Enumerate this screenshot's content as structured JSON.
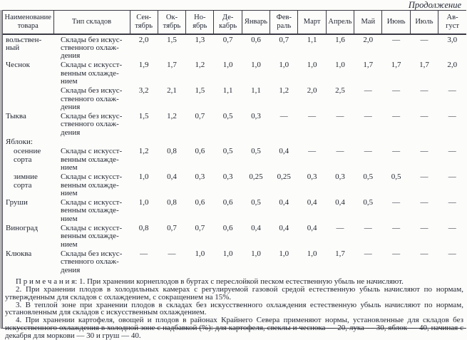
{
  "page": {
    "continuation_label": "Продолжение"
  },
  "table": {
    "columns": [
      "Наименование\nтовара",
      "Тип складов",
      "Сен-\nтябрь",
      "Ок-\nтябрь",
      "Но-\nябрь",
      "Де-\nкабрь",
      "Январь",
      "Фев-\nраль",
      "Март",
      "Апрель",
      "Май",
      "Июнь",
      "Июль",
      "Ав-\nгуст"
    ],
    "rows": [
      {
        "name": "вольствен-\nный",
        "indent": false,
        "type": "Склады без искус-\nственного охлаж-\nдения",
        "values": [
          "2,0",
          "1,5",
          "1,3",
          "0,7",
          "0,6",
          "0,7",
          "1,1",
          "1,6",
          "2,0",
          "—",
          "—",
          "3,0"
        ]
      },
      {
        "name": "Чеснок",
        "indent": false,
        "type": "Склады с искусст-\nвенным охлажде-\nнием",
        "values": [
          "1,9",
          "1,7",
          "1,2",
          "1,0",
          "1,0",
          "1,0",
          "1,0",
          "1,0",
          "1,7",
          "1,7",
          "1,7",
          "2,0"
        ]
      },
      {
        "name": "",
        "indent": false,
        "type": "Склады без искус-\nственного охлаж-\nдения",
        "values": [
          "3,2",
          "2,1",
          "1,5",
          "1,1",
          "1,1",
          "1,2",
          "2,0",
          "2,5",
          "—",
          "—",
          "—",
          "—"
        ]
      },
      {
        "name": "Тыква",
        "indent": false,
        "type": "Склады без искус-\nственного охлаж-\nдения",
        "values": [
          "1,5",
          "1,2",
          "0,7",
          "0,5",
          "0,3",
          "—",
          "—",
          "—",
          "—",
          "—",
          "—",
          "—"
        ]
      },
      {
        "name": "Яблоки:",
        "indent": false,
        "type": "",
        "values": [
          "",
          "",
          "",
          "",
          "",
          "",
          "",
          "",
          "",
          "",
          "",
          ""
        ]
      },
      {
        "name": "осенние\nсорта",
        "indent": true,
        "type": "Склады с искусст-\nвенным охлажде-\nнием",
        "values": [
          "1,2",
          "0,8",
          "0,6",
          "0,5",
          "0,5",
          "0,4",
          "—",
          "—",
          "—",
          "—",
          "—",
          "—"
        ]
      },
      {
        "name": "зимние\nсорта",
        "indent": true,
        "type": "Склады с искусст-\nвенным охлажде-\nнием",
        "values": [
          "1,0",
          "0,4",
          "0,3",
          "0,3",
          "0,25",
          "0,25",
          "0,3",
          "0,3",
          "0,5",
          "0,5",
          "—",
          "—"
        ]
      },
      {
        "name": "Груши",
        "indent": false,
        "type": "Склады с искусст-\nвенным охлажде-\nнием",
        "values": [
          "1,0",
          "0,8",
          "0,6",
          "0,6",
          "0,5",
          "0,4",
          "0,4",
          "0,4",
          "0,5",
          "—",
          "—",
          "—"
        ]
      },
      {
        "name": "Виноград",
        "indent": false,
        "type": "Склады с искусст-\nвенным охлажде-\nнием",
        "values": [
          "0,8",
          "0,7",
          "0,7",
          "0,6",
          "0,4",
          "0,4",
          "0,4",
          "—",
          "—",
          "—",
          "—",
          "—"
        ]
      },
      {
        "name": "Клюква",
        "indent": false,
        "type": "Склады без искус-\nственного охлаж-\nдения",
        "values": [
          "—",
          "—",
          "1,0",
          "1,0",
          "1,0",
          "1,0",
          "1,0",
          "1,7",
          "—",
          "—",
          "—",
          "—"
        ]
      }
    ]
  },
  "notes": {
    "paragraphs": [
      "П р и м е ч а н и я: 1. При хранении корнеплодов в буртах с переслойкой песком естественную убыль не начисляют.",
      "2. При хранении плодов в холодильных камерах с регулируемой газовой средой естественную убыль начисляют по нормам, утвержденным для складов с охлаждением, с сокращением на 15%.",
      "3. В теплой зоне при хранении плодов в складах без искусственного охлаждения естественную убыль начисляют по нормам, установленным для складов с искусственным охлаждением.",
      "4. При хранении картофеля, овощей и плодов в районах Крайнего Севера применяют нормы, установленные для складов без искусственного охлаждения в холодной зоне с надбавкой (%): для картофеля, свеклы и чеснока — 20, лука — 30, яблок — 40, начиная с декабря для моркови — 30 и груш — 40."
    ]
  }
}
